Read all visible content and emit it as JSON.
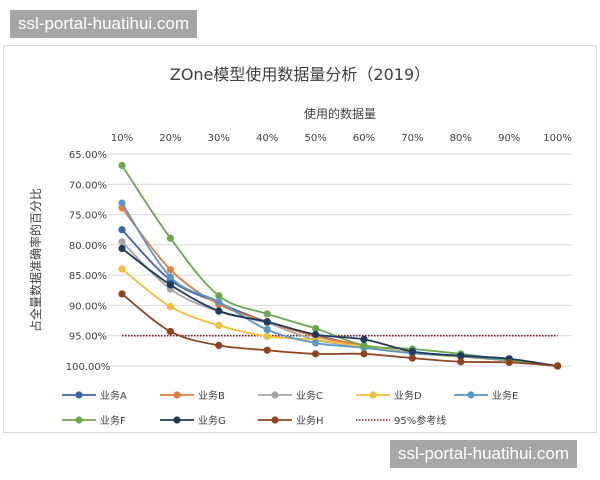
{
  "watermark": "ssl-portal-huatihui.com",
  "chart_data": {
    "type": "line",
    "title": "ZOne模型使用数据量分析（2019）",
    "xlabel": "使用的数据量",
    "ylabel": "占全量数据准确率的百分比",
    "categories": [
      "10%",
      "20%",
      "30%",
      "40%",
      "50%",
      "60%",
      "70%",
      "80%",
      "90%",
      "100%"
    ],
    "x_axis_position": "top",
    "y_inverted": true,
    "ylim": [
      65,
      100
    ],
    "yticks": [
      "65.00%",
      "70.00%",
      "75.00%",
      "80.00%",
      "85.00%",
      "90.00%",
      "95.00%",
      "100.00%"
    ],
    "ytick_values": [
      65,
      70,
      75,
      80,
      85,
      90,
      95,
      100
    ],
    "grid": true,
    "legend_position": "bottom",
    "series": [
      {
        "name": "业务A",
        "color": "#3f63a8",
        "values": [
          77.5,
          85.8,
          89.6,
          92.7,
          94.9,
          96.7,
          97.8,
          98.4,
          99.1,
          100
        ]
      },
      {
        "name": "业务B",
        "color": "#e57c3c",
        "values": [
          73.9,
          84.1,
          89.8,
          92.7,
          95.1,
          96.6,
          97.8,
          98.4,
          99.1,
          100
        ]
      },
      {
        "name": "业务C",
        "color": "#a5a5a5",
        "values": [
          79.5,
          87.3,
          91.0,
          92.9,
          95.7,
          96.8,
          97.8,
          98.4,
          99.1,
          100
        ]
      },
      {
        "name": "业务D",
        "color": "#f2bf3a",
        "values": [
          84.0,
          90.2,
          93.3,
          95.1,
          95.7,
          96.8,
          97.9,
          98.5,
          99.1,
          100
        ]
      },
      {
        "name": "业务E",
        "color": "#5a96c8",
        "values": [
          73.1,
          85.3,
          89.4,
          94.0,
          96.2,
          97.0,
          97.9,
          98.4,
          99.1,
          100
        ]
      },
      {
        "name": "业务F",
        "color": "#6aa84f",
        "values": [
          66.9,
          78.9,
          88.4,
          91.4,
          93.8,
          96.6,
          97.2,
          98.0,
          99.0,
          100
        ]
      },
      {
        "name": "业务G",
        "color": "#1f3a5c",
        "values": [
          80.6,
          86.6,
          90.9,
          92.7,
          94.8,
          95.6,
          97.6,
          98.3,
          98.8,
          100
        ]
      },
      {
        "name": "业务H",
        "color": "#8e4520",
        "values": [
          88.1,
          94.3,
          96.6,
          97.4,
          98.0,
          98.0,
          98.7,
          99.3,
          99.4,
          100
        ]
      }
    ],
    "reference_line": {
      "name": "95%参考线",
      "value": 95,
      "color": "#7a1f1f"
    }
  }
}
